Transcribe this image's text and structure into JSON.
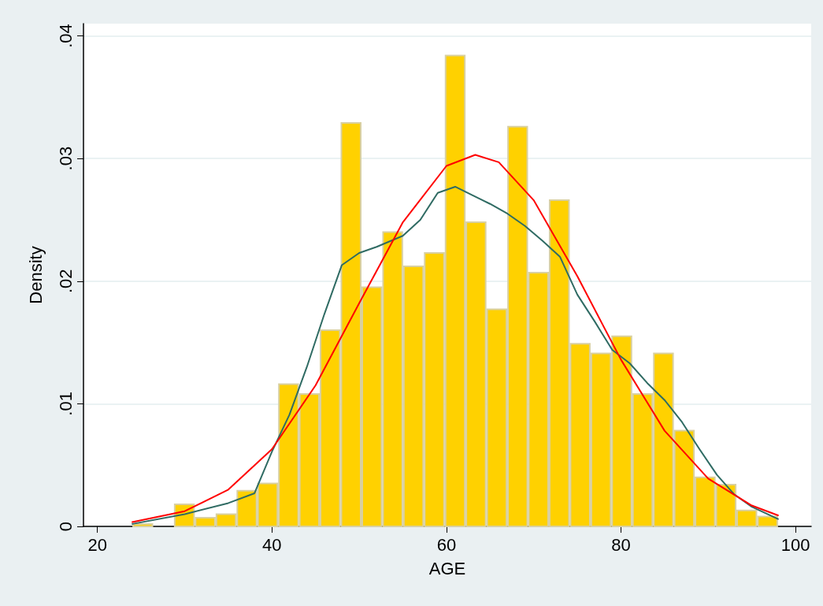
{
  "chart_data": {
    "type": "histogram",
    "xlabel": "AGE",
    "ylabel": "Density",
    "color": "#ffd100",
    "bins": [
      24,
      26.39,
      28.77,
      31.16,
      33.55,
      35.94,
      38.32,
      40.71,
      43.1,
      45.48,
      47.87,
      50.26,
      52.65,
      55.03,
      57.42,
      59.81,
      62.19,
      64.58,
      66.97,
      69.35,
      71.74,
      74.13,
      76.52,
      78.9,
      81.29,
      83.68,
      86.06,
      88.45,
      90.84,
      93.23,
      95.61,
      98
    ],
    "values": [
      0.0002,
      0,
      0.0018,
      0.0007,
      0.001,
      0.0029,
      0.0035,
      0.0116,
      0.0108,
      0.016,
      0.0329,
      0.0195,
      0.024,
      0.0212,
      0.0223,
      0.0384,
      0.0248,
      0.0177,
      0.0326,
      0.0207,
      0.0266,
      0.0149,
      0.0141,
      0.0155,
      0.0108,
      0.0141,
      0.0078,
      0.004,
      0.0034,
      0.0013,
      0.0008
    ],
    "series": [
      {
        "type": "line",
        "color": "#2f6b63",
        "x": [
          24,
          30,
          35,
          38,
          40,
          42,
          44,
          46,
          48,
          50,
          52,
          55,
          57,
          59,
          61,
          63,
          65,
          67,
          69,
          71,
          73,
          75,
          77,
          79,
          81,
          83,
          85,
          87,
          89,
          91,
          93,
          95,
          98
        ],
        "values": [
          0.0002,
          0.001,
          0.0019,
          0.0027,
          0.0061,
          0.0091,
          0.013,
          0.0173,
          0.0213,
          0.0223,
          0.0228,
          0.0237,
          0.025,
          0.0272,
          0.0277,
          0.027,
          0.0263,
          0.0255,
          0.0245,
          0.0233,
          0.022,
          0.0189,
          0.0167,
          0.0144,
          0.0133,
          0.0117,
          0.0103,
          0.0085,
          0.0063,
          0.0042,
          0.0026,
          0.0016,
          0.0006
        ]
      },
      {
        "type": "line",
        "color": "#ff0000",
        "x": [
          24,
          30,
          35,
          40,
          45,
          50,
          55,
          60,
          63.3,
          66,
          70,
          75,
          80,
          85,
          90,
          95,
          98
        ],
        "values": [
          0.00035,
          0.00124,
          0.003,
          0.0063,
          0.0115,
          0.0182,
          0.0248,
          0.0294,
          0.0303,
          0.0297,
          0.0266,
          0.0204,
          0.0136,
          0.0078,
          0.0039,
          0.0017,
          0.0009
        ]
      }
    ],
    "xlim": [
      18.4,
      101.8
    ],
    "xticks": [
      20,
      40,
      60,
      80,
      100
    ],
    "ylim": [
      0,
      0.041
    ],
    "yticks": [
      0,
      {
        "value": 0.01,
        "label": ".01"
      },
      {
        "value": 0.02,
        "label": ".02"
      },
      {
        "value": 0.03,
        "label": ".03"
      },
      {
        "value": 0.04,
        "label": ".04"
      }
    ],
    "grid": "y",
    "marker": "none",
    "line_style": "solid",
    "legend": false
  }
}
